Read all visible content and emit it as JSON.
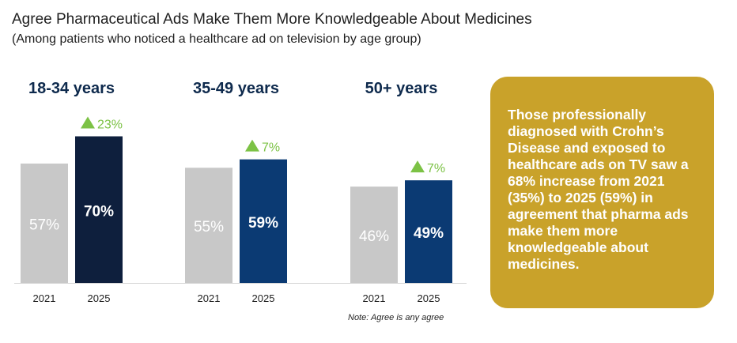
{
  "header": {
    "title": "Agree Pharmaceutical Ads Make Them More Knowledgeable About Medicines",
    "subtitle": "(Among patients who noticed a healthcare ad on television by age group)"
  },
  "chart_data": {
    "type": "bar",
    "title": "Agree Pharmaceutical Ads Make Them More Knowledgeable About Medicines",
    "subtitle": "(Among patients who noticed a healthcare ad on television by age group)",
    "ylim": [
      0,
      100
    ],
    "grid": false,
    "groups": [
      {
        "label": "18-34 years",
        "years": [
          "2021",
          "2025"
        ],
        "values": [
          57,
          70
        ],
        "value_labels": [
          "57%",
          "70%"
        ],
        "change": "23%",
        "color_2025": "#0e1f3d"
      },
      {
        "label": "35-49 years",
        "years": [
          "2021",
          "2025"
        ],
        "values": [
          55,
          59
        ],
        "value_labels": [
          "55%",
          "59%"
        ],
        "change": "7%",
        "color_2025": "#0b3a73"
      },
      {
        "label": "50+ years",
        "years": [
          "2021",
          "2025"
        ],
        "values": [
          46,
          49
        ],
        "value_labels": [
          "46%",
          "49%"
        ],
        "change": "7%",
        "color_2025": "#0b3a73"
      }
    ],
    "color_2021": "#c8c8c8",
    "change_color": "#7cc245",
    "group_label_color": "#0e2a4d"
  },
  "callout": {
    "text": "Those professionally diagnosed with Crohn’s Disease and exposed to healthcare ads on TV saw a 68% increase from 2021 (35%) to 2025 (59%) in agreement that pharma ads make them more knowledgeable about medicines."
  },
  "footer": {
    "note": "Note: Agree is any agree"
  }
}
